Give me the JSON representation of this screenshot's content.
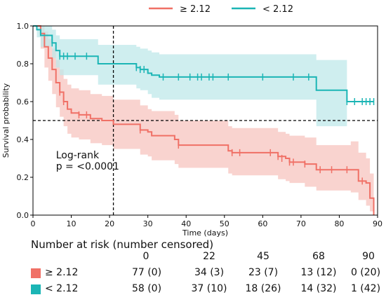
{
  "chart_data": {
    "type": "line",
    "subtype": "kaplan-meier",
    "xlabel": "Time (days)",
    "ylabel": "Survival probability",
    "xlim": [
      0,
      90
    ],
    "ylim": [
      0,
      1.0
    ],
    "xticks": [
      0,
      10,
      20,
      30,
      40,
      50,
      60,
      70,
      80,
      90
    ],
    "yticks": [
      0.0,
      0.2,
      0.4,
      0.6,
      0.8,
      1.0
    ],
    "legend_position": "top-center",
    "grid": false,
    "annotation": {
      "line1": "Log-rank",
      "line2": "p = <0.0001"
    },
    "reference_lines": {
      "median_survival": 0.5,
      "vertical_time": 21
    },
    "series": [
      {
        "name": "≥ 2.12",
        "color": "#f07066",
        "band_color": "#f7c4bf",
        "steps": [
          [
            0,
            1.0
          ],
          [
            2,
            0.96
          ],
          [
            3,
            0.89
          ],
          [
            4,
            0.83
          ],
          [
            5,
            0.77
          ],
          [
            6,
            0.7
          ],
          [
            7,
            0.65
          ],
          [
            8,
            0.6
          ],
          [
            9,
            0.56
          ],
          [
            10,
            0.54
          ],
          [
            12,
            0.53
          ],
          [
            15,
            0.51
          ],
          [
            18,
            0.5
          ],
          [
            21,
            0.48
          ],
          [
            28,
            0.45
          ],
          [
            30,
            0.44
          ],
          [
            31,
            0.42
          ],
          [
            37,
            0.4
          ],
          [
            38,
            0.37
          ],
          [
            43,
            0.37
          ],
          [
            51,
            0.34
          ],
          [
            52,
            0.33
          ],
          [
            61,
            0.33
          ],
          [
            64,
            0.31
          ],
          [
            66,
            0.3
          ],
          [
            67,
            0.28
          ],
          [
            71,
            0.27
          ],
          [
            74,
            0.24
          ],
          [
            83,
            0.24
          ],
          [
            85,
            0.18
          ],
          [
            87,
            0.17
          ],
          [
            88,
            0.09
          ],
          [
            89,
            0.0
          ]
        ],
        "upper": [
          [
            0,
            1.0
          ],
          [
            2,
            1.0
          ],
          [
            3,
            0.97
          ],
          [
            4,
            0.93
          ],
          [
            5,
            0.88
          ],
          [
            6,
            0.82
          ],
          [
            7,
            0.77
          ],
          [
            8,
            0.72
          ],
          [
            9,
            0.69
          ],
          [
            10,
            0.67
          ],
          [
            12,
            0.66
          ],
          [
            15,
            0.64
          ],
          [
            18,
            0.63
          ],
          [
            21,
            0.61
          ],
          [
            28,
            0.58
          ],
          [
            30,
            0.56
          ],
          [
            31,
            0.55
          ],
          [
            37,
            0.53
          ],
          [
            38,
            0.5
          ],
          [
            43,
            0.5
          ],
          [
            51,
            0.47
          ],
          [
            52,
            0.46
          ],
          [
            61,
            0.46
          ],
          [
            64,
            0.44
          ],
          [
            66,
            0.43
          ],
          [
            67,
            0.42
          ],
          [
            71,
            0.41
          ],
          [
            74,
            0.37
          ],
          [
            83,
            0.39
          ],
          [
            85,
            0.33
          ],
          [
            87,
            0.3
          ],
          [
            88,
            0.22
          ],
          [
            89,
            0.2
          ]
        ],
        "lower": [
          [
            0,
            1.0
          ],
          [
            2,
            0.88
          ],
          [
            3,
            0.78
          ],
          [
            4,
            0.71
          ],
          [
            5,
            0.64
          ],
          [
            6,
            0.57
          ],
          [
            7,
            0.52
          ],
          [
            8,
            0.47
          ],
          [
            9,
            0.43
          ],
          [
            10,
            0.41
          ],
          [
            12,
            0.4
          ],
          [
            15,
            0.38
          ],
          [
            18,
            0.37
          ],
          [
            21,
            0.35
          ],
          [
            28,
            0.32
          ],
          [
            30,
            0.31
          ],
          [
            31,
            0.29
          ],
          [
            37,
            0.27
          ],
          [
            38,
            0.25
          ],
          [
            43,
            0.25
          ],
          [
            51,
            0.22
          ],
          [
            52,
            0.21
          ],
          [
            61,
            0.21
          ],
          [
            64,
            0.19
          ],
          [
            66,
            0.18
          ],
          [
            67,
            0.17
          ],
          [
            71,
            0.15
          ],
          [
            74,
            0.13
          ],
          [
            83,
            0.12
          ],
          [
            85,
            0.08
          ],
          [
            87,
            0.05
          ],
          [
            88,
            0.02
          ],
          [
            89,
            0.0
          ]
        ],
        "censored": [
          [
            7,
            0.65
          ],
          [
            8,
            0.6
          ],
          [
            12,
            0.53
          ],
          [
            14,
            0.53
          ],
          [
            28,
            0.45
          ],
          [
            38,
            0.37
          ],
          [
            52,
            0.33
          ],
          [
            54,
            0.33
          ],
          [
            62,
            0.33
          ],
          [
            64,
            0.31
          ],
          [
            65,
            0.3
          ],
          [
            67,
            0.28
          ],
          [
            68,
            0.28
          ],
          [
            71,
            0.27
          ],
          [
            75,
            0.24
          ],
          [
            78,
            0.24
          ],
          [
            82,
            0.24
          ],
          [
            86,
            0.18
          ]
        ]
      },
      {
        "name": "< 2.12",
        "color": "#1bb5b5",
        "band_color": "#bfe8ea",
        "steps": [
          [
            0,
            1.0
          ],
          [
            1,
            0.98
          ],
          [
            2,
            0.95
          ],
          [
            5,
            0.91
          ],
          [
            6,
            0.87
          ],
          [
            7,
            0.84
          ],
          [
            17,
            0.8
          ],
          [
            27,
            0.78
          ],
          [
            28,
            0.77
          ],
          [
            30,
            0.75
          ],
          [
            31,
            0.74
          ],
          [
            33,
            0.73
          ],
          [
            74,
            0.66
          ],
          [
            82,
            0.6
          ],
          [
            89,
            0.6
          ]
        ],
        "upper": [
          [
            0,
            1.0
          ],
          [
            1,
            1.0
          ],
          [
            2,
            1.0
          ],
          [
            5,
            0.98
          ],
          [
            6,
            0.95
          ],
          [
            7,
            0.93
          ],
          [
            17,
            0.9
          ],
          [
            27,
            0.89
          ],
          [
            28,
            0.88
          ],
          [
            30,
            0.87
          ],
          [
            31,
            0.86
          ],
          [
            33,
            0.85
          ],
          [
            74,
            0.82
          ],
          [
            82,
            0.82
          ]
        ],
        "lower": [
          [
            0,
            1.0
          ],
          [
            1,
            0.94
          ],
          [
            2,
            0.89
          ],
          [
            5,
            0.83
          ],
          [
            6,
            0.78
          ],
          [
            7,
            0.74
          ],
          [
            17,
            0.69
          ],
          [
            27,
            0.67
          ],
          [
            28,
            0.66
          ],
          [
            30,
            0.64
          ],
          [
            31,
            0.62
          ],
          [
            33,
            0.61
          ],
          [
            74,
            0.47
          ],
          [
            82,
            0.47
          ]
        ],
        "censored": [
          [
            5,
            0.91
          ],
          [
            7,
            0.84
          ],
          [
            8,
            0.84
          ],
          [
            9,
            0.84
          ],
          [
            11,
            0.84
          ],
          [
            14,
            0.84
          ],
          [
            27,
            0.78
          ],
          [
            28,
            0.77
          ],
          [
            29,
            0.77
          ],
          [
            34,
            0.73
          ],
          [
            38,
            0.73
          ],
          [
            41,
            0.73
          ],
          [
            43,
            0.73
          ],
          [
            44,
            0.73
          ],
          [
            46,
            0.73
          ],
          [
            47,
            0.73
          ],
          [
            51,
            0.73
          ],
          [
            60,
            0.73
          ],
          [
            68,
            0.73
          ],
          [
            72,
            0.73
          ],
          [
            82,
            0.6
          ],
          [
            84,
            0.6
          ],
          [
            86,
            0.6
          ],
          [
            87,
            0.6
          ],
          [
            88,
            0.6
          ],
          [
            89,
            0.6
          ]
        ]
      }
    ]
  },
  "risk_table": {
    "title": "Number at risk (number censored)",
    "times": [
      "0",
      "22",
      "45",
      "68",
      "90"
    ],
    "groups": [
      {
        "label": "≥ 2.12",
        "color": "#f07066",
        "values": [
          "77 (0)",
          "34 (3)",
          "23 (7)",
          "13 (12)",
          "0 (20)"
        ]
      },
      {
        "label": "< 2.12",
        "color": "#1bb5b5",
        "values": [
          "58 (0)",
          "37 (10)",
          "18 (26)",
          "14 (32)",
          "1 (42)"
        ]
      }
    ]
  }
}
